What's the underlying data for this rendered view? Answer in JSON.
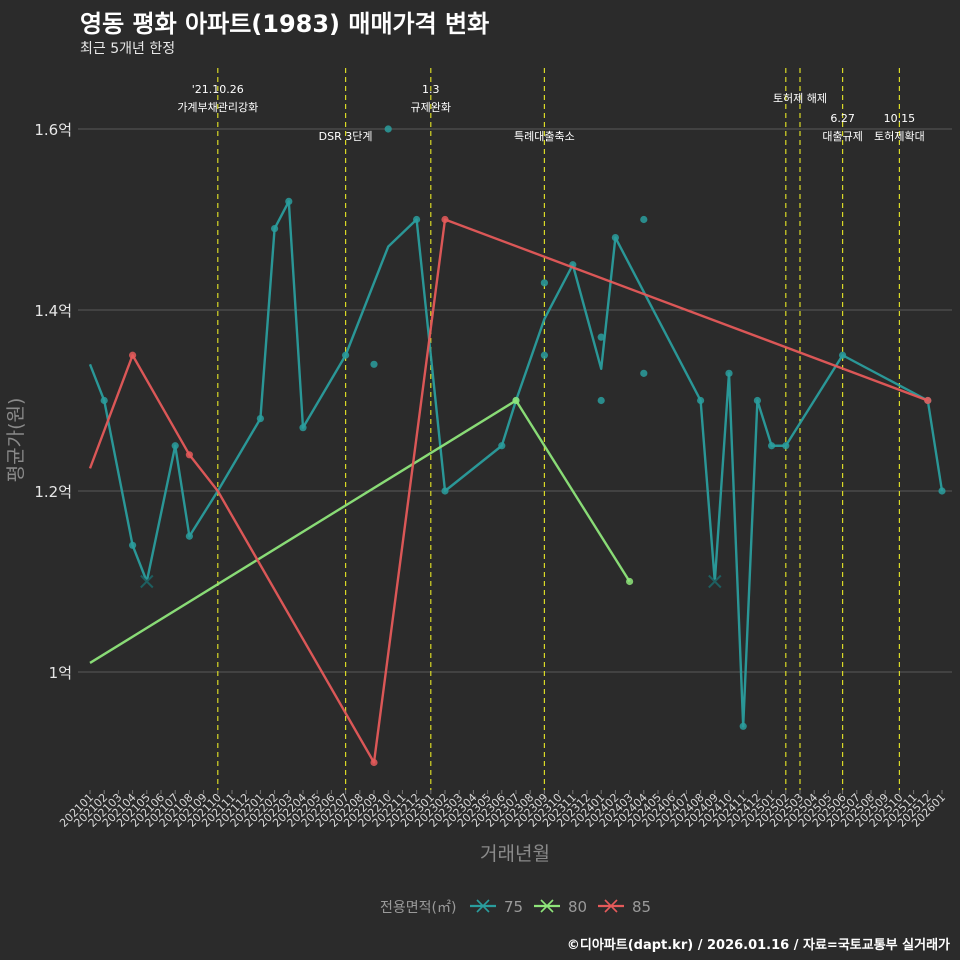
{
  "chart_data": {
    "type": "line",
    "title": "영동 평화 아파트(1983) 매매가격 변화",
    "subtitle": "최근 5개년 한정",
    "xlabel": "거래년월",
    "ylabel": "평균가(원)",
    "ylim": [
      0.87,
      1.66
    ],
    "y_ticks": [
      {
        "value": 1.0,
        "label": "1억"
      },
      {
        "value": 1.2,
        "label": "1.2억"
      },
      {
        "value": 1.4,
        "label": "1.4억"
      },
      {
        "value": 1.6,
        "label": "1.6억"
      }
    ],
    "x_categories": [
      "202101",
      "202102",
      "202103",
      "202104",
      "202105",
      "202106",
      "202107",
      "202108",
      "202109",
      "202110",
      "202111",
      "202112",
      "202201",
      "202202",
      "202203",
      "202204",
      "202205",
      "202206",
      "202207",
      "202208",
      "202209",
      "202210",
      "202211",
      "202212",
      "202301",
      "202302",
      "202303",
      "202304",
      "202305",
      "202306",
      "202307",
      "202308",
      "202309",
      "202310",
      "202311",
      "202312",
      "202401",
      "202402",
      "202403",
      "202404",
      "202405",
      "202406",
      "202407",
      "202408",
      "202409",
      "202410",
      "202411",
      "202412",
      "202501",
      "202502",
      "202503",
      "202504",
      "202505",
      "202506",
      "202507",
      "202508",
      "202509",
      "202510",
      "202511",
      "202512",
      "202601"
    ],
    "legend_title": "전용면적(㎡)",
    "series": [
      {
        "name": "75",
        "color": "#2a9d9d",
        "line": [
          [
            "202101",
            1.34
          ],
          [
            "202102",
            1.3
          ],
          [
            "202104",
            1.14
          ],
          [
            "202105",
            1.1
          ],
          [
            "202107",
            1.25
          ],
          [
            "202108",
            1.15
          ],
          [
            "202110",
            1.2
          ],
          [
            "202201",
            1.28
          ],
          [
            "202202",
            1.49
          ],
          [
            "202203",
            1.52
          ],
          [
            "202204",
            1.27
          ],
          [
            "202207",
            1.35
          ],
          [
            "202210",
            1.47
          ],
          [
            "202212",
            1.5
          ],
          [
            "202302",
            1.2
          ],
          [
            "202306",
            1.25
          ],
          [
            "202307",
            1.3
          ],
          [
            "202309",
            1.39
          ],
          [
            "202311",
            1.45
          ],
          [
            "202401",
            1.335
          ],
          [
            "202402",
            1.48
          ],
          [
            "202404",
            1.42
          ],
          [
            "202408",
            1.3
          ],
          [
            "202409",
            1.1
          ],
          [
            "202410",
            1.33
          ],
          [
            "202411",
            0.94
          ],
          [
            "202412",
            1.3
          ],
          [
            "202501",
            1.25
          ],
          [
            "202502",
            1.25
          ],
          [
            "202506",
            1.35
          ],
          [
            "202512",
            1.3
          ],
          [
            "202601",
            1.2
          ]
        ],
        "points": [
          [
            "202102",
            1.3
          ],
          [
            "202104",
            1.14
          ],
          [
            "202107",
            1.25
          ],
          [
            "202108",
            1.15
          ],
          [
            "202201",
            1.28
          ],
          [
            "202202",
            1.49
          ],
          [
            "202203",
            1.52
          ],
          [
            "202204",
            1.27
          ],
          [
            "202207",
            1.35
          ],
          [
            "202209",
            1.34
          ],
          [
            "202210",
            1.6
          ],
          [
            "202212",
            1.5
          ],
          [
            "202302",
            1.2
          ],
          [
            "202306",
            1.25
          ],
          [
            "202307",
            1.3
          ],
          [
            "202309",
            1.43
          ],
          [
            "202309",
            1.35
          ],
          [
            "202311",
            1.45
          ],
          [
            "202401",
            1.37
          ],
          [
            "202401",
            1.3
          ],
          [
            "202402",
            1.48
          ],
          [
            "202404",
            1.5
          ],
          [
            "202404",
            1.33
          ],
          [
            "202408",
            1.3
          ],
          [
            "202410",
            1.33
          ],
          [
            "202411",
            0.94
          ],
          [
            "202412",
            1.3
          ],
          [
            "202501",
            1.25
          ],
          [
            "202502",
            1.25
          ],
          [
            "202506",
            1.35
          ],
          [
            "202512",
            1.3
          ],
          [
            "202601",
            1.2
          ]
        ],
        "cross_points": [
          [
            "202105",
            1.1
          ],
          [
            "202409",
            1.1
          ]
        ]
      },
      {
        "name": "80",
        "color": "#8ee57a",
        "line": [
          [
            "202101",
            1.01
          ],
          [
            "202307",
            1.3
          ],
          [
            "202403",
            1.1
          ]
        ],
        "points": [
          [
            "202307",
            1.3
          ],
          [
            "202403",
            1.1
          ]
        ],
        "cross_points": []
      },
      {
        "name": "85",
        "color": "#e55a5a",
        "line": [
          [
            "202101",
            1.225
          ],
          [
            "202104",
            1.35
          ],
          [
            "202108",
            1.24
          ],
          [
            "202110",
            1.2
          ],
          [
            "202209",
            0.9
          ],
          [
            "202302",
            1.5
          ],
          [
            "202512",
            1.3
          ]
        ],
        "points": [
          [
            "202104",
            1.35
          ],
          [
            "202108",
            1.24
          ],
          [
            "202209",
            0.9
          ],
          [
            "202302",
            1.5
          ],
          [
            "202512",
            1.3
          ]
        ],
        "cross_points": []
      }
    ],
    "events": [
      {
        "x": "202110",
        "label_top": "'21.10.26",
        "label_bottom": "가계부채관리강화",
        "level": "high"
      },
      {
        "x": "202207",
        "label_top": "",
        "label_bottom": "DSR 3단계",
        "level": "low"
      },
      {
        "x": "202301",
        "label_top": "1.3",
        "label_bottom": "규제완화",
        "level": "high"
      },
      {
        "x": "202309",
        "label_top": "",
        "label_bottom": "특례대출축소",
        "level": "low"
      },
      {
        "x": "202502",
        "label_top": "",
        "label_bottom": "",
        "level": "none"
      },
      {
        "x": "202503",
        "label_top": "",
        "label_bottom": "토허제 해제",
        "level": "mid"
      },
      {
        "x": "202506",
        "label_top": "6.27",
        "label_bottom": "대출규제",
        "level": "low"
      },
      {
        "x": "202510",
        "label_top": "10.15",
        "label_bottom": "토허제확대",
        "level": "low"
      }
    ]
  },
  "footer": "©디아파트(dapt.kr) / 2026.01.16 / 자료=국토교통부 실거래가"
}
